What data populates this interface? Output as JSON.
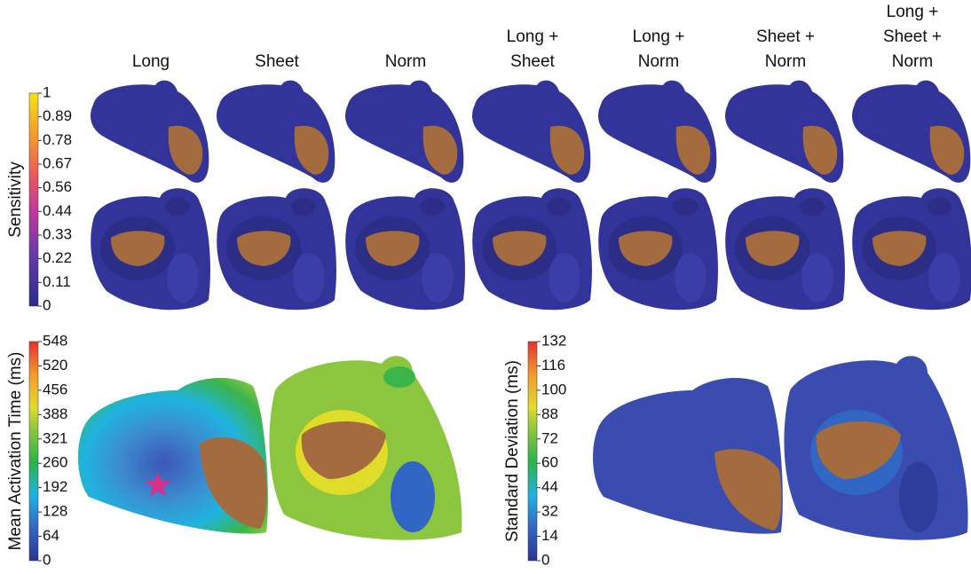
{
  "column_headers": [
    [
      "Long"
    ],
    [
      "Sheet"
    ],
    [
      "Norm"
    ],
    [
      "Long +",
      "Sheet"
    ],
    [
      "Long +",
      "Norm"
    ],
    [
      "Sheet +",
      "Norm"
    ],
    [
      "Long +",
      "Sheet +",
      "Norm"
    ]
  ],
  "colorbars": [
    {
      "label": "Sensitivity",
      "ticks": [
        1,
        0.89,
        0.78,
        0.67,
        0.56,
        0.44,
        0.33,
        0.22,
        0.11,
        0
      ]
    },
    {
      "label": "Mean Activation Time (ms)",
      "ticks": [
        548,
        520,
        456,
        388,
        321,
        260,
        192,
        128,
        64,
        0
      ]
    },
    {
      "label": "Standard Deviation (ms)",
      "ticks": [
        132,
        116,
        100,
        88,
        72,
        60,
        44,
        32,
        14,
        0
      ]
    }
  ]
}
